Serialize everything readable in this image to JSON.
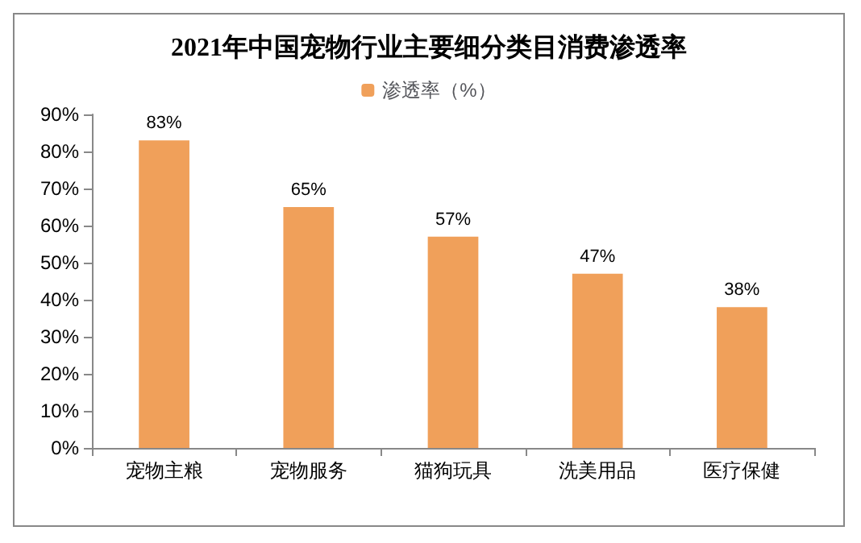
{
  "chart_data": {
    "type": "bar",
    "title": "2021年中国宠物行业主要细分类目消费渗透率",
    "categories": [
      "宠物主粮",
      "宠物服务",
      "猫狗玩具",
      "洗美用品",
      "医疗保健"
    ],
    "series": [
      {
        "name": "渗透率（%）",
        "color": "#f0a05a",
        "values": [
          83,
          65,
          57,
          47,
          38
        ],
        "value_labels": [
          "83%",
          "65%",
          "57%",
          "47%",
          "38%"
        ]
      }
    ],
    "ylim": [
      0,
      90
    ],
    "yticks": [
      {
        "value": 0,
        "label": "0%"
      },
      {
        "value": 10,
        "label": "10%"
      },
      {
        "value": 20,
        "label": "20%"
      },
      {
        "value": 30,
        "label": "30%"
      },
      {
        "value": 40,
        "label": "40%"
      },
      {
        "value": 50,
        "label": "50%"
      },
      {
        "value": 60,
        "label": "60%"
      },
      {
        "value": 70,
        "label": "70%"
      },
      {
        "value": 80,
        "label": "80%"
      },
      {
        "value": 90,
        "label": "90%"
      }
    ],
    "grid": false,
    "legend": "top"
  }
}
